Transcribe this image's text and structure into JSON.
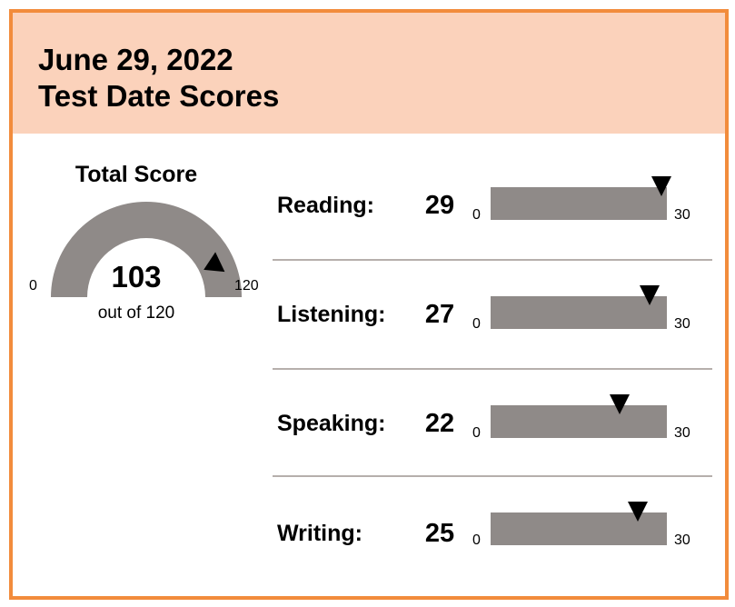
{
  "header": {
    "date": "June 29, 2022",
    "title": "Test Date Scores",
    "background": "#FBD2BB",
    "border_color": "#F28C3C"
  },
  "total": {
    "label": "Total Score",
    "value": "103",
    "out_of": "out of 120",
    "min_label": "0",
    "max_label": "120",
    "score": 103,
    "max": 120
  },
  "sections": [
    {
      "label": "Reading:",
      "score_text": "29",
      "score": 29,
      "min_label": "0",
      "max_label": "30",
      "max": 30
    },
    {
      "label": "Listening:",
      "score_text": "27",
      "score": 27,
      "min_label": "0",
      "max_label": "30",
      "max": 30
    },
    {
      "label": "Speaking:",
      "score_text": "22",
      "score": 22,
      "min_label": "0",
      "max_label": "30",
      "max": 30
    },
    {
      "label": "Writing:",
      "score_text": "25",
      "score": 25,
      "min_label": "0",
      "max_label": "30",
      "max": 30
    }
  ],
  "colors": {
    "gauge": "#8F8A88",
    "marker": "#000000",
    "divider": "#B6AFAC"
  }
}
